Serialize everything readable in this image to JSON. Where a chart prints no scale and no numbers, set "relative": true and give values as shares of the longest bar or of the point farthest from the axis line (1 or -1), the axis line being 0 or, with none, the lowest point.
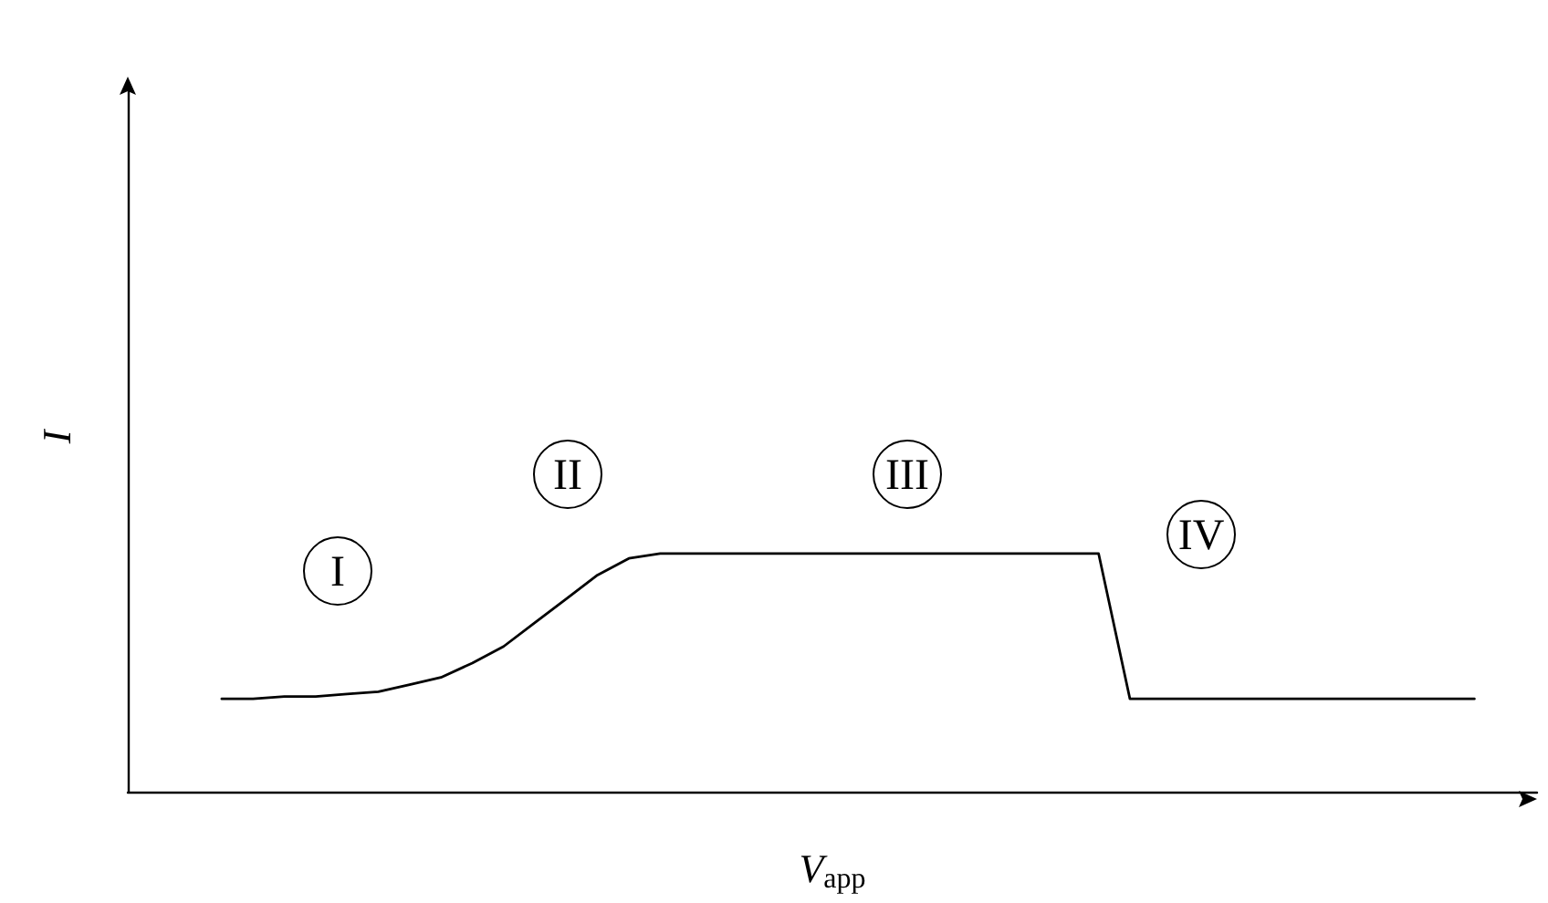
{
  "chart_data": {
    "type": "line",
    "relative": true,
    "xlabel": "V$_{app}$",
    "ylabel": "I",
    "categories": [
      null,
      null,
      null,
      null,
      null,
      null,
      null,
      null,
      null,
      null,
      null,
      null,
      null,
      null,
      null,
      null,
      null,
      null,
      null,
      null,
      null,
      null,
      null,
      null,
      null,
      null,
      null,
      null,
      null,
      null,
      null,
      null,
      null,
      null,
      null,
      null,
      null,
      null,
      null,
      null,
      null,
      null,
      null,
      null,
      null,
      null
    ],
    "series": [
      {
        "color": "#000000",
        "values": [
          null,
          null,
          null,
          0.39,
          0.39,
          0.4,
          0.4,
          0.41,
          0.42,
          0.45,
          0.48,
          0.54,
          0.61,
          0.71,
          0.81,
          0.91,
          0.98,
          1,
          1,
          1,
          1,
          1,
          1,
          1,
          1,
          1,
          1,
          1,
          1,
          1,
          1,
          1,
          0.39,
          0.39,
          0.39,
          0.39,
          0.39,
          0.39,
          0.39,
          0.39,
          0.39,
          0.39,
          0.39,
          0.39,
          null,
          null
        ]
      }
    ],
    "annotations": [
      "I",
      "II",
      "III",
      "IV"
    ],
    "grid": false,
    "marker": "none",
    "line_style": "solid"
  }
}
